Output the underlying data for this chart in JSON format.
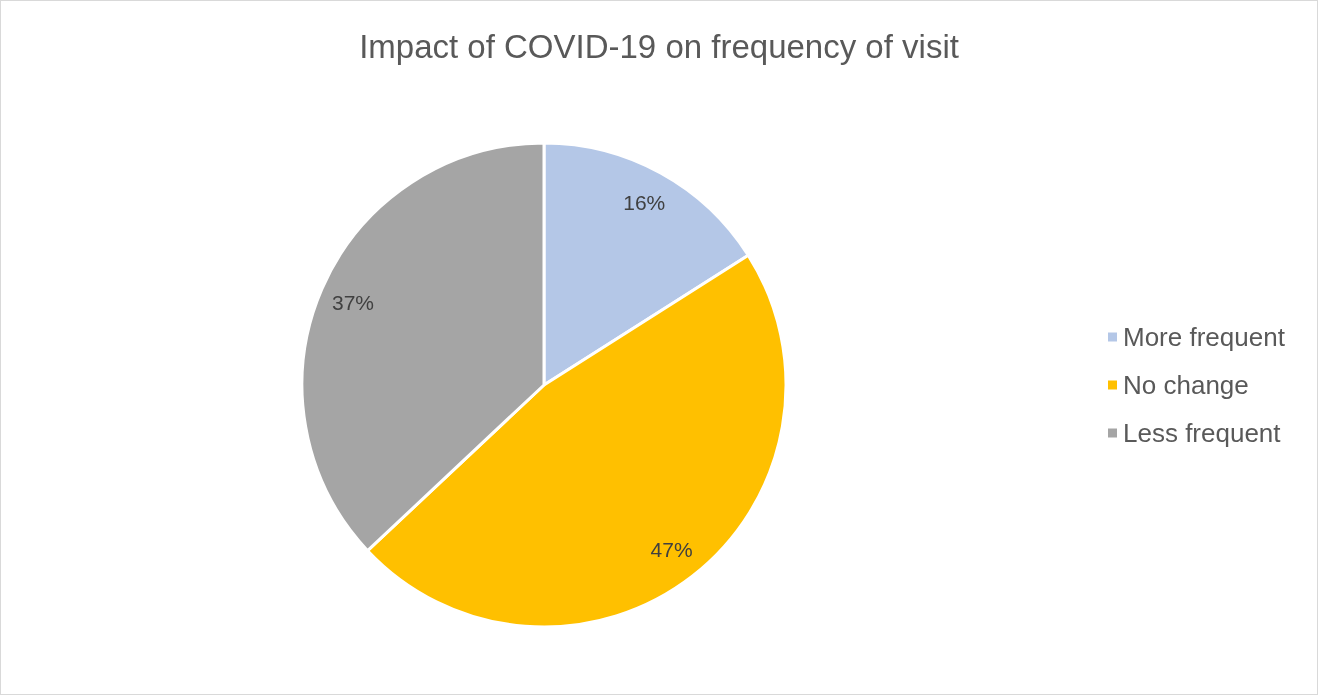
{
  "chart_data": {
    "type": "pie",
    "title": "Impact of COVID-19 on frequency of visit",
    "categories": [
      "More frequent",
      "No change",
      "Less frequent"
    ],
    "values": [
      16,
      47,
      37
    ],
    "colors": [
      "#b4c7e7",
      "#ffc000",
      "#a5a5a5"
    ],
    "value_labels": [
      "16%",
      "47%",
      "37%"
    ],
    "legend": "right"
  }
}
